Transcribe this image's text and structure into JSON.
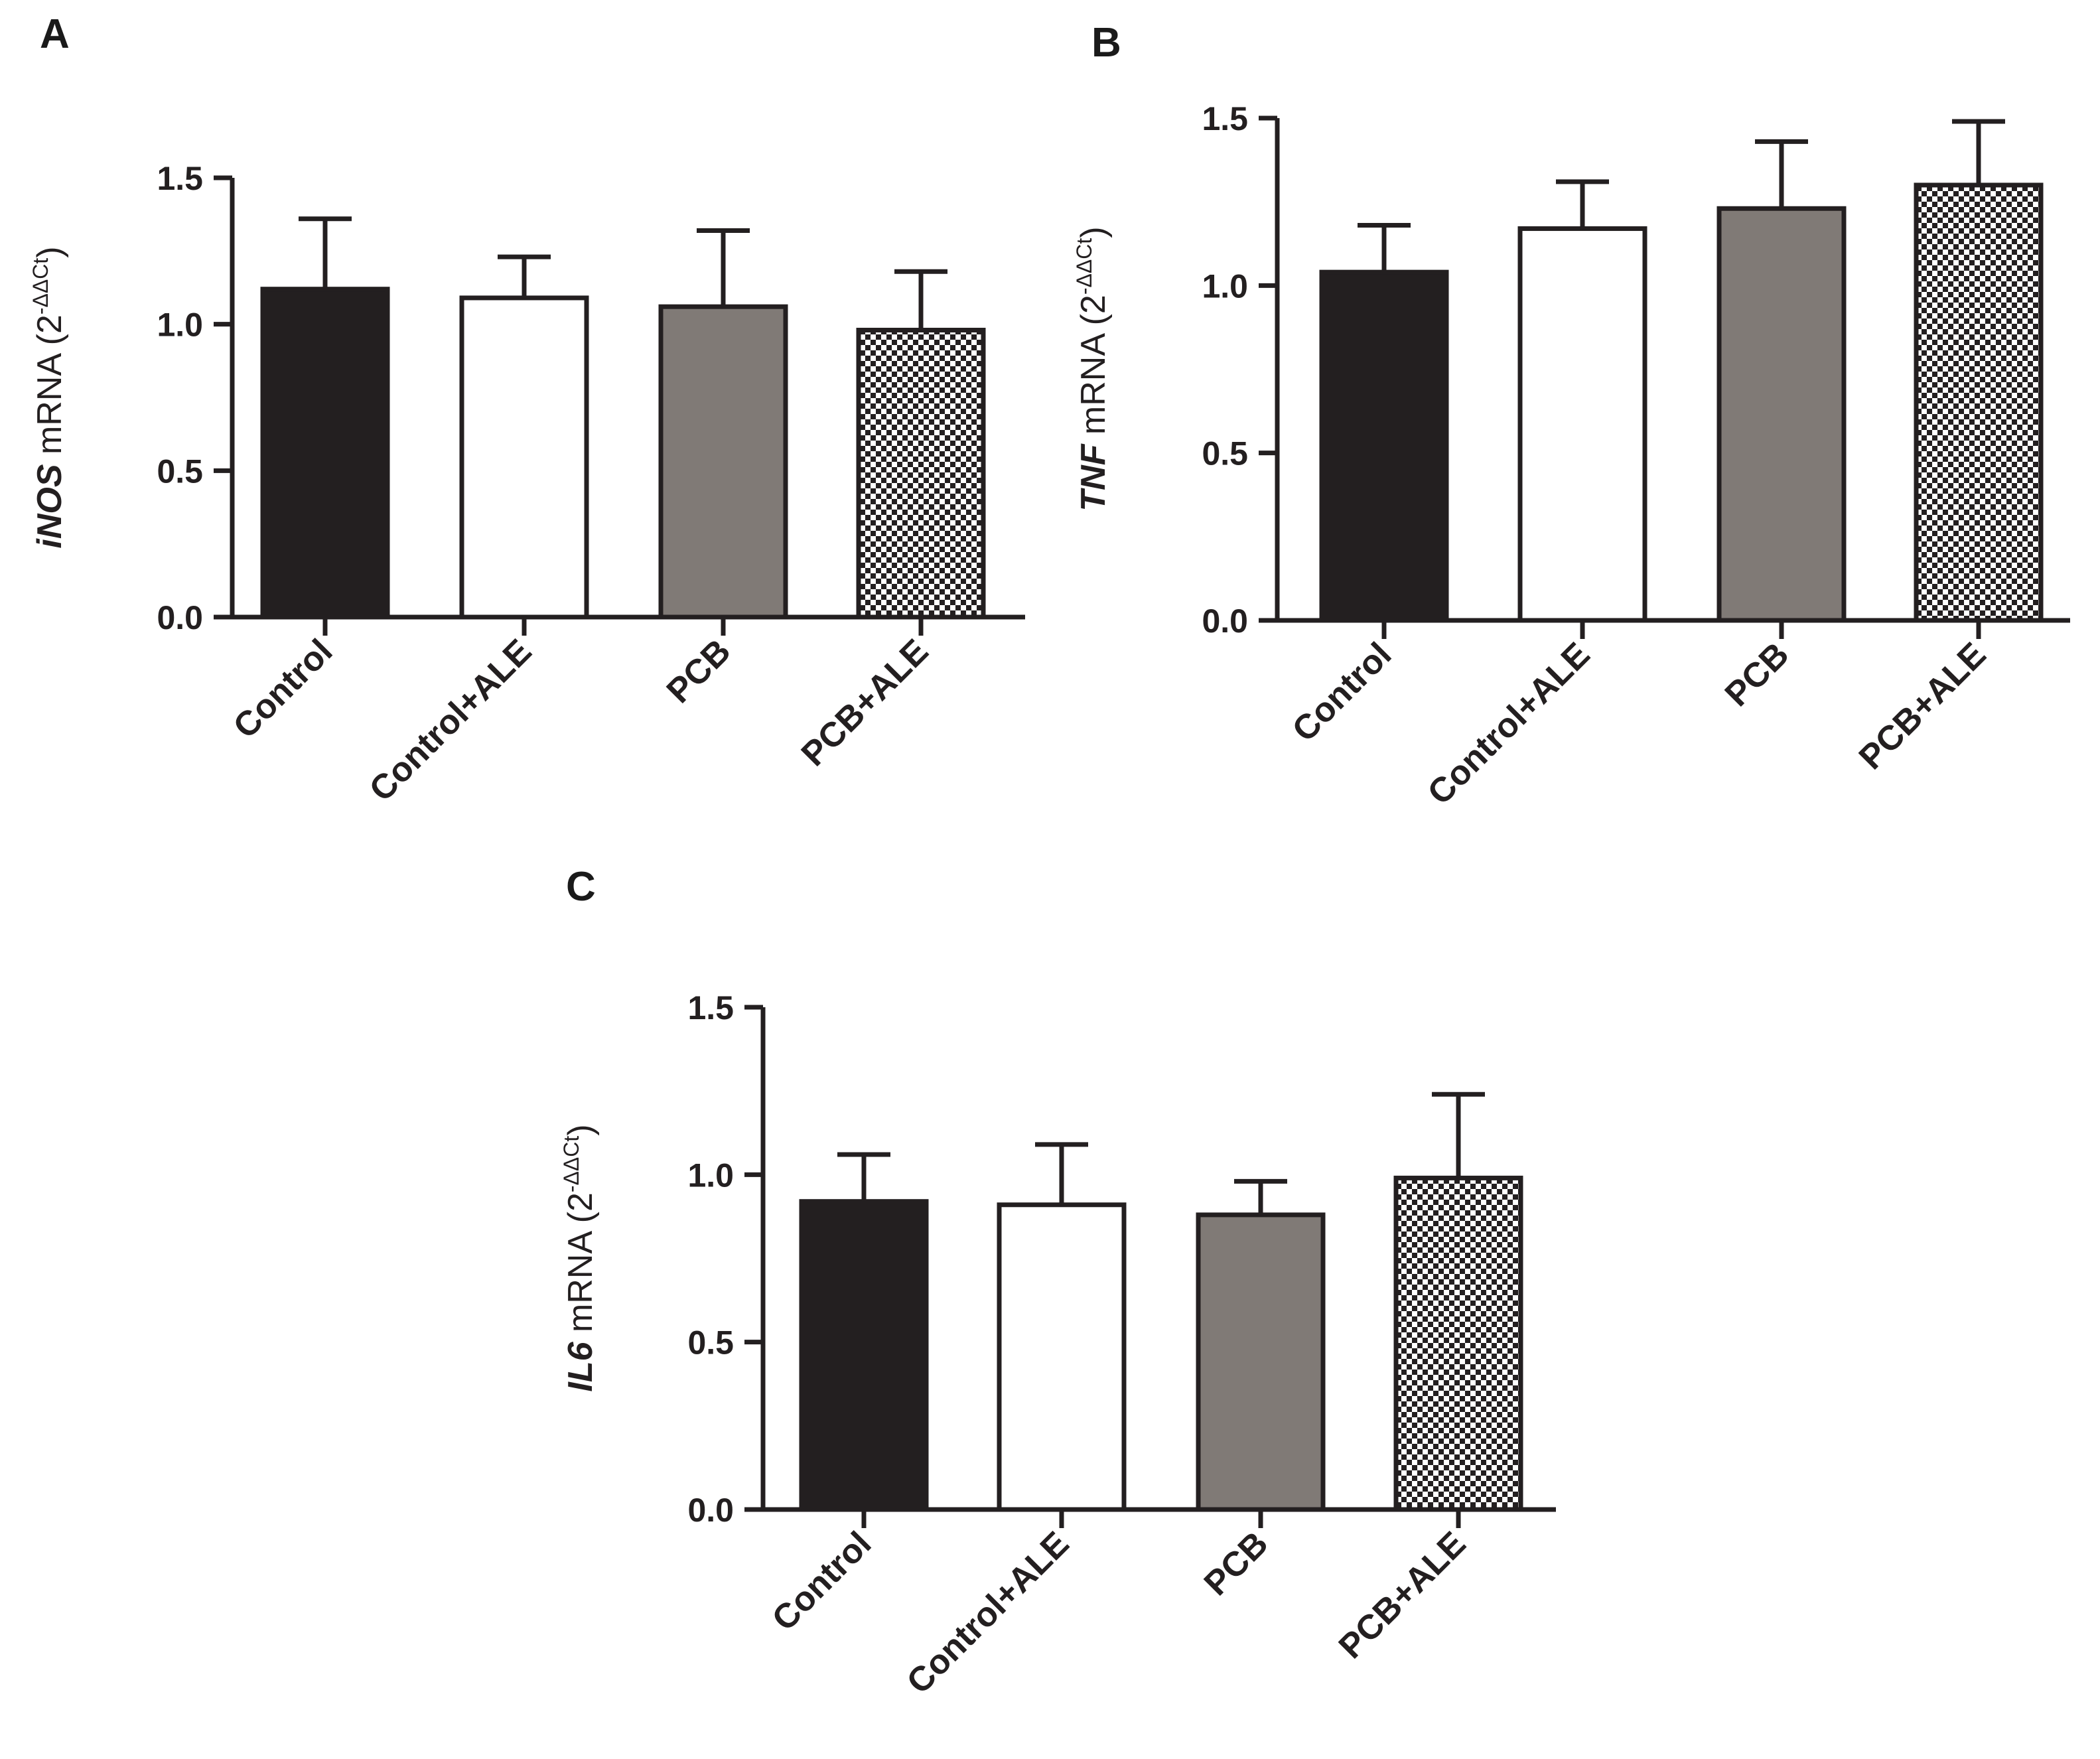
{
  "figure_title": "",
  "chart_data": [
    {
      "panel": "A",
      "type": "bar",
      "categories": [
        "Control",
        "Control+ALE",
        "PCB",
        "PCB+ALE"
      ],
      "values": [
        1.12,
        1.09,
        1.06,
        0.98
      ],
      "errors": [
        0.24,
        0.14,
        0.26,
        0.2
      ],
      "fills": [
        "black",
        "white",
        "gray",
        "checker"
      ],
      "ylabel_gene": "iNOS",
      "ylabel_unit": " mRNA (2",
      "ylabel_sup": "-ΔΔCt",
      "ylabel_close": ")",
      "ylim": [
        0,
        1.5
      ],
      "yticks": [
        0.0,
        0.5,
        1.0,
        1.5
      ],
      "ytick_labels": [
        "0.0",
        "0.5",
        "1.0",
        "1.5"
      ],
      "grid": false,
      "legend": "none"
    },
    {
      "panel": "B",
      "type": "bar",
      "categories": [
        "Control",
        "Control+ALE",
        "PCB",
        "PCB+ALE"
      ],
      "values": [
        1.04,
        1.17,
        1.23,
        1.3
      ],
      "errors": [
        0.14,
        0.14,
        0.2,
        0.19
      ],
      "fills": [
        "black",
        "white",
        "gray",
        "checker"
      ],
      "ylabel_gene": "TNF",
      "ylabel_unit": " mRNA (2",
      "ylabel_sup": "-ΔΔCt",
      "ylabel_close": ")",
      "ylim": [
        0,
        1.5
      ],
      "yticks": [
        0.0,
        0.5,
        1.0,
        1.5
      ],
      "ytick_labels": [
        "0.0",
        "0.5",
        "1.0",
        "1.5"
      ],
      "grid": false,
      "legend": "none"
    },
    {
      "panel": "C",
      "type": "bar",
      "categories": [
        "Control",
        "Control+ALE",
        "PCB",
        "PCB+ALE"
      ],
      "values": [
        0.92,
        0.91,
        0.88,
        0.99
      ],
      "errors": [
        0.14,
        0.18,
        0.1,
        0.25
      ],
      "fills": [
        "black",
        "white",
        "gray",
        "checker"
      ],
      "ylabel_gene": "IL6",
      "ylabel_unit": " mRNA (2",
      "ylabel_sup": "-ΔΔCt",
      "ylabel_close": ")",
      "ylim": [
        0,
        1.5
      ],
      "yticks": [
        0.0,
        0.5,
        1.0,
        1.5
      ],
      "ytick_labels": [
        "0.0",
        "0.5",
        "1.0",
        "1.5"
      ],
      "grid": false,
      "legend": "none"
    }
  ],
  "colors": {
    "axis": "#231f20",
    "black_bar": "#231f20",
    "white_bar": "#ffffff",
    "gray_bar": "#807a76",
    "checker_dark": "#231f20",
    "checker_light": "#ffffff"
  }
}
